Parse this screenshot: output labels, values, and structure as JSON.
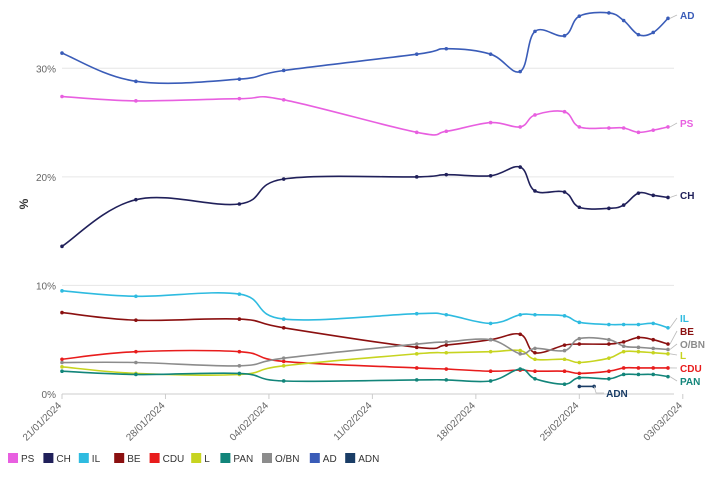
{
  "chart_data": {
    "type": "line",
    "title": "",
    "xlabel": "",
    "ylabel": "%",
    "ylim": [
      0,
      35
    ],
    "yticks": [
      0,
      10,
      20,
      30
    ],
    "ytick_labels": [
      "0%",
      "10%",
      "20%",
      "30%"
    ],
    "xlim": [
      0,
      41
    ],
    "xticks": [
      0,
      7,
      14,
      21,
      28,
      35,
      42
    ],
    "xtick_labels": [
      "21/01/2024",
      "28/01/2024",
      "04/02/2024",
      "11/02/2024",
      "18/02/2024",
      "25/02/2024",
      "03/03/2024"
    ],
    "grid": true,
    "legend_position": "bottom-left",
    "series": [
      {
        "name": "PS",
        "label": "PS",
        "color": "#e85fe0",
        "x": [
          0,
          5,
          12,
          15,
          24,
          26,
          29,
          31,
          32,
          34,
          35,
          37,
          38,
          39,
          40,
          41
        ],
        "values": [
          27.4,
          27.0,
          27.2,
          27.1,
          24.1,
          24.2,
          25.0,
          24.6,
          25.7,
          26.0,
          24.6,
          24.5,
          24.5,
          24.1,
          24.3,
          24.6
        ]
      },
      {
        "name": "CH",
        "label": "CH",
        "color": "#20205a",
        "x": [
          0,
          5,
          12,
          15,
          24,
          26,
          29,
          31,
          32,
          34,
          35,
          37,
          38,
          39,
          40,
          41
        ],
        "values": [
          13.6,
          17.9,
          17.5,
          19.8,
          20.0,
          20.2,
          20.1,
          20.9,
          18.7,
          18.6,
          17.2,
          17.1,
          17.4,
          18.5,
          18.3,
          18.1
        ]
      },
      {
        "name": "IL",
        "label": "IL",
        "color": "#2ebbe0",
        "x": [
          0,
          5,
          12,
          15,
          24,
          26,
          29,
          31,
          32,
          34,
          35,
          37,
          38,
          39,
          40,
          41
        ],
        "values": [
          9.5,
          9.0,
          9.2,
          6.9,
          7.4,
          7.3,
          6.5,
          7.3,
          7.3,
          7.2,
          6.6,
          6.4,
          6.4,
          6.4,
          6.5,
          6.1
        ]
      },
      {
        "name": "BE",
        "label": "BE",
        "color": "#8b1010",
        "x": [
          0,
          5,
          12,
          15,
          24,
          26,
          29,
          31,
          32,
          34,
          35,
          37,
          38,
          39,
          40,
          41
        ],
        "values": [
          7.5,
          6.8,
          6.9,
          6.1,
          4.3,
          4.5,
          5.0,
          5.5,
          3.8,
          4.5,
          4.6,
          4.6,
          4.8,
          5.2,
          5.0,
          4.6
        ]
      },
      {
        "name": "CDU",
        "label": "CDU",
        "color": "#e81c1c",
        "x": [
          0,
          5,
          12,
          15,
          24,
          26,
          29,
          31,
          32,
          34,
          35,
          37,
          38,
          39,
          40,
          41
        ],
        "values": [
          3.2,
          3.9,
          3.9,
          3.0,
          2.4,
          2.3,
          2.1,
          2.2,
          2.1,
          2.1,
          1.9,
          2.1,
          2.4,
          2.4,
          2.4,
          2.4
        ]
      },
      {
        "name": "L",
        "label": "L",
        "color": "#c7d420",
        "x": [
          0,
          5,
          12,
          15,
          24,
          26,
          29,
          31,
          32,
          34,
          35,
          37,
          38,
          39,
          40,
          41
        ],
        "values": [
          2.5,
          1.9,
          1.8,
          2.6,
          3.7,
          3.8,
          3.9,
          4.0,
          3.2,
          3.2,
          2.9,
          3.3,
          3.9,
          3.9,
          3.8,
          3.7
        ]
      },
      {
        "name": "PAN",
        "label": "PAN",
        "color": "#12857a",
        "x": [
          0,
          5,
          12,
          15,
          24,
          26,
          29,
          31,
          32,
          34,
          35,
          37,
          38,
          39,
          40,
          41
        ],
        "values": [
          2.1,
          1.8,
          1.9,
          1.2,
          1.3,
          1.3,
          1.2,
          2.3,
          1.4,
          0.9,
          1.5,
          1.4,
          1.8,
          1.8,
          1.8,
          1.6
        ]
      },
      {
        "name": "O/BN",
        "label": "O/BN",
        "color": "#8c8c8c",
        "x": [
          0,
          5,
          12,
          15,
          24,
          26,
          29,
          31,
          32,
          34,
          35,
          37,
          38,
          39,
          40,
          41
        ],
        "values": [
          2.9,
          2.9,
          2.6,
          3.3,
          4.6,
          4.8,
          5.0,
          3.7,
          4.2,
          4.0,
          5.1,
          5.0,
          4.4,
          4.3,
          4.2,
          4.1
        ]
      },
      {
        "name": "AD",
        "label": "AD",
        "color": "#3a5cb8",
        "x": [
          0,
          5,
          12,
          15,
          24,
          26,
          29,
          31,
          32,
          34,
          35,
          37,
          38,
          39,
          40,
          41
        ],
        "values": [
          31.4,
          28.8,
          29.0,
          29.8,
          31.3,
          31.8,
          31.3,
          29.7,
          33.4,
          33.0,
          34.8,
          35.1,
          34.4,
          33.1,
          33.3,
          34.6
        ]
      },
      {
        "name": "ADN",
        "label": "ADN",
        "color": "#1a3d66",
        "x": [
          35,
          36
        ],
        "values": [
          0.7,
          0.7
        ]
      }
    ]
  }
}
